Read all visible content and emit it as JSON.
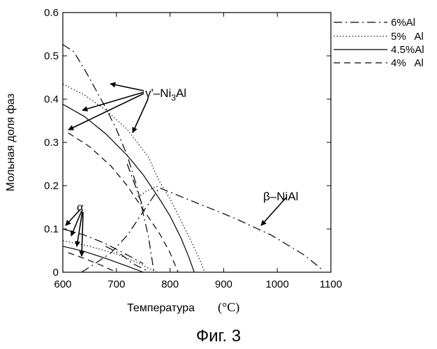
{
  "caption": "Фиг. 3",
  "chart_data": {
    "type": "line",
    "xlabel": "Температура",
    "xunit": "(°C)",
    "ylabel": "Мольная доля фаз",
    "xlim": [
      600,
      1100
    ],
    "ylim": [
      0,
      0.6
    ],
    "xticks": [
      "600",
      "700",
      "800",
      "900",
      "1000",
      "1100"
    ],
    "yticks": [
      "0",
      "0.1",
      "0.2",
      "0.3",
      "0.4",
      "0.5",
      "0.6"
    ],
    "legend": [
      {
        "label": "6%Al",
        "style": "dashdot"
      },
      {
        "label": "5%   Al",
        "style": "dotted"
      },
      {
        "label": "4.5%Al",
        "style": "solid"
      },
      {
        "label": "4%   Al",
        "style": "dashed"
      }
    ],
    "annotations": {
      "gamma_prime": {
        "sym": "γ'–Ni",
        "sub": "3",
        "rest": "Al"
      },
      "beta": "β–NiAl",
      "alpha": "α"
    },
    "series": [
      {
        "name": "γ' 6%Al",
        "style": "dashdot",
        "x": [
          600,
          620,
          640,
          660,
          680,
          700,
          720,
          740,
          760,
          770
        ],
        "y": [
          0.526,
          0.51,
          0.47,
          0.425,
          0.38,
          0.33,
          0.27,
          0.19,
          0.08,
          0
        ]
      },
      {
        "name": "γ' 5%Al",
        "style": "dotted",
        "x": [
          600,
          640,
          680,
          720,
          760,
          780,
          800,
          820,
          840,
          855,
          865
        ],
        "y": [
          0.435,
          0.41,
          0.375,
          0.33,
          0.265,
          0.21,
          0.17,
          0.12,
          0.07,
          0.03,
          0
        ]
      },
      {
        "name": "γ' 4.5%Al",
        "style": "solid",
        "x": [
          600,
          640,
          680,
          720,
          750,
          780,
          800,
          820,
          835,
          845
        ],
        "y": [
          0.388,
          0.36,
          0.32,
          0.27,
          0.225,
          0.17,
          0.13,
          0.08,
          0.035,
          0
        ]
      },
      {
        "name": "γ' 4%Al",
        "style": "dashed",
        "x": [
          610,
          650,
          690,
          720,
          750,
          780,
          800,
          815
        ],
        "y": [
          0.322,
          0.29,
          0.245,
          0.2,
          0.145,
          0.09,
          0.045,
          0
        ]
      },
      {
        "name": "β 6%Al",
        "style": "dashdot",
        "x": [
          635,
          660,
          690,
          720,
          750,
          780,
          850,
          920,
          990,
          1050,
          1085
        ],
        "y": [
          0,
          0.02,
          0.045,
          0.085,
          0.14,
          0.195,
          0.16,
          0.125,
          0.085,
          0.04,
          0.005
        ]
      },
      {
        "name": "β 5%Al",
        "style": "dotted",
        "x": [
          735,
          760,
          780
        ],
        "y": [
          0.17,
          0.19,
          0.2
        ]
      },
      {
        "name": "γ' 6%Al branch",
        "style": "dashdot",
        "x": [
          720,
          735,
          750
        ],
        "y": [
          0.25,
          0.2,
          0.15
        ]
      },
      {
        "name": "α 6%Al",
        "style": "dashdot",
        "x": [
          600,
          640,
          680,
          720,
          750
        ],
        "y": [
          0.1,
          0.086,
          0.066,
          0.04,
          0.02
        ]
      },
      {
        "name": "α 5%Al",
        "style": "dotted",
        "x": [
          600,
          650,
          700,
          740,
          775
        ],
        "y": [
          0.073,
          0.06,
          0.042,
          0.022,
          0
        ]
      },
      {
        "name": "α 4.5%Al",
        "style": "solid",
        "x": [
          600,
          640,
          680,
          720,
          750
        ],
        "y": [
          0.06,
          0.048,
          0.032,
          0.014,
          0
        ]
      },
      {
        "name": "α 4%Al",
        "style": "dashed",
        "x": [
          610,
          640,
          670,
          700
        ],
        "y": [
          0.045,
          0.032,
          0.017,
          0
        ]
      },
      {
        "name": "α secondary 6%Al",
        "style": "dashdot",
        "x": [
          680,
          710,
          730,
          755
        ],
        "y": [
          0.06,
          0.04,
          0.02,
          0.005
        ]
      }
    ]
  }
}
